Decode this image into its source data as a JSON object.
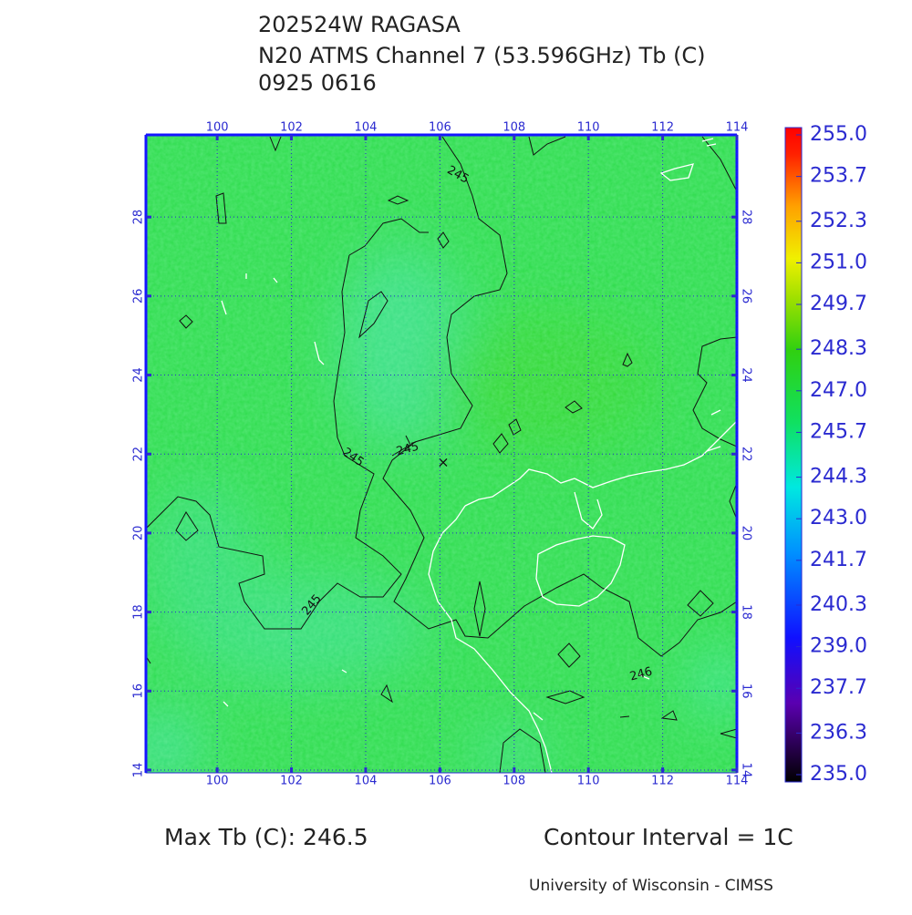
{
  "title_lines": [
    "202524W RAGASA",
    "N20 ATMS Channel 7 (53.596GHz) Tb (C)",
    "0925 0616"
  ],
  "map": {
    "lonlim": [
      98.08,
      114
    ],
    "latlim": [
      13.93,
      30.08
    ],
    "lon_ticks": [
      100,
      102,
      104,
      106,
      108,
      110,
      112,
      114
    ],
    "lat_ticks": [
      14,
      16,
      18,
      20,
      22,
      24,
      26,
      28
    ]
  },
  "colorbar": {
    "lim": [
      235,
      255
    ],
    "ticks": [
      {
        "value": 255,
        "label": "255.0"
      },
      {
        "value": 253.7,
        "label": "253.7"
      },
      {
        "value": 252.3,
        "label": "252.3"
      },
      {
        "value": 251,
        "label": "251.0"
      },
      {
        "value": 249.7,
        "label": "249.7"
      },
      {
        "value": 248.3,
        "label": "248.3"
      },
      {
        "value": 247,
        "label": "247.0"
      },
      {
        "value": 245.7,
        "label": "245.7"
      },
      {
        "value": 244.3,
        "label": "244.3"
      },
      {
        "value": 243,
        "label": "243.0"
      },
      {
        "value": 241.7,
        "label": "241.7"
      },
      {
        "value": 240.3,
        "label": "240.3"
      },
      {
        "value": 239,
        "label": "239.0"
      },
      {
        "value": 237.7,
        "label": "237.7"
      },
      {
        "value": 236.3,
        "label": "236.3"
      },
      {
        "value": 235,
        "label": "235.0"
      }
    ]
  },
  "contour_labels": [
    "245",
    "245",
    "245",
    "245",
    "246"
  ],
  "footer": {
    "max_tb": "Max Tb (C): 246.5",
    "contour_interval": "Contour Interval = 1C",
    "credit": "University of Wisconsin - CIMSS"
  }
}
